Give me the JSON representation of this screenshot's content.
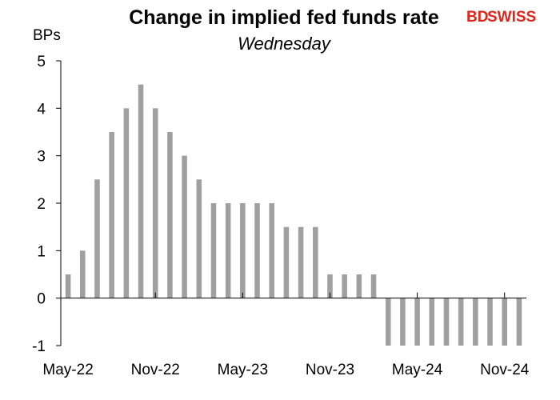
{
  "chart_data": {
    "type": "bar",
    "title": "Change in implied fed funds rate",
    "subtitle": "Wednesday",
    "ylabel": "BPs",
    "xlabel": "",
    "ylim": [
      -1,
      5
    ],
    "yticks": [
      "5",
      "4",
      "3",
      "2",
      "1",
      "0",
      "-1"
    ],
    "xtick_labels": [
      "May-22",
      "Nov-22",
      "May-23",
      "Nov-23",
      "May-24",
      "Nov-24"
    ],
    "bar_color": "#a0a0a0",
    "grid": false,
    "series": [
      {
        "values": [
          0.5,
          1,
          2.5,
          3.5,
          4,
          4.5,
          4,
          3.5,
          3,
          2.5,
          2,
          2,
          2,
          2,
          2,
          1.5,
          1.5,
          1.5,
          0.5,
          0.5,
          0.5,
          0.5,
          -1,
          -1,
          -1,
          -1,
          -1,
          -1,
          -1,
          -1,
          -1,
          -1
        ]
      }
    ]
  },
  "logo": {
    "bd": "BD",
    "swiss": "SWISS",
    "bd_color": "#e0251b",
    "swiss_color": "#e0251b"
  }
}
